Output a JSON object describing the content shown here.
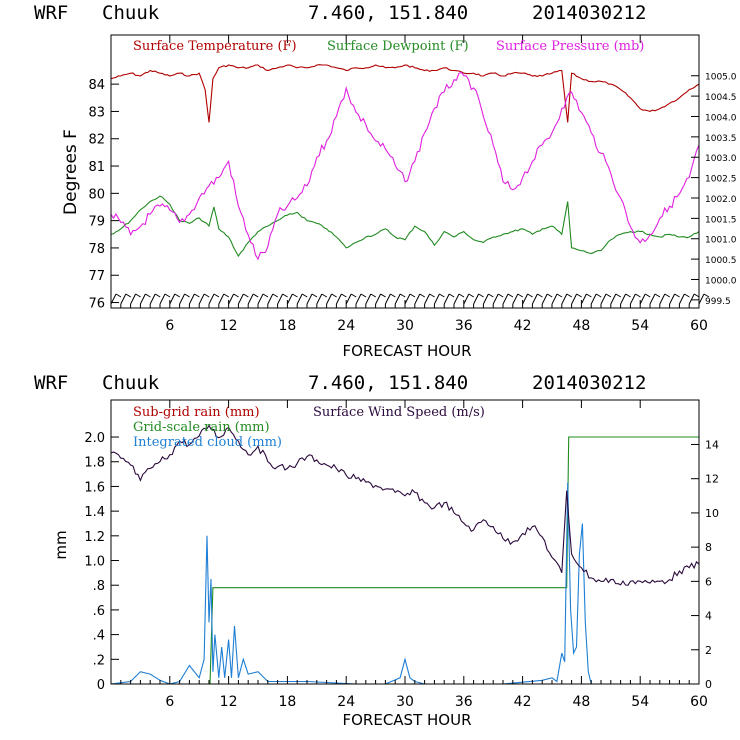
{
  "header": {
    "model": "WRF",
    "station": "Chuuk",
    "coords": "7.460, 151.840",
    "run": "2014030212"
  },
  "colors": {
    "temperature": "#b00000",
    "dewpoint": "#228b22",
    "pressure": "#e020e0",
    "subgrid_rain": "#b00000",
    "gridscale_rain": "#228b22",
    "cloud": "#1e7fd4",
    "wind": "#2b0a3d",
    "axis": "#000000",
    "barb": "#000000"
  },
  "chart_data": [
    {
      "type": "line",
      "xlabel": "FORECAST HOUR",
      "ylabel": "Degrees F",
      "xlim": [
        0,
        60
      ],
      "ylim": [
        75.8,
        85.8
      ],
      "y2lim": [
        999.3,
        1006.0
      ],
      "xticks": [
        6,
        12,
        18,
        24,
        30,
        36,
        42,
        48,
        54,
        60
      ],
      "yticks": [
        76,
        77,
        78,
        79,
        80,
        81,
        82,
        83,
        84
      ],
      "y2ticks": [
        "999.5",
        "1000.0",
        "1000.5",
        "1001.0",
        "1001.5",
        "1002.0",
        "1002.5",
        "1003.0",
        "1003.5",
        "1004.0",
        "1004.5",
        "1005.0"
      ],
      "legend": [
        "Surface Temperature (F)",
        "Surface Dewpoint (F)",
        "Surface Pressure (mb)"
      ],
      "legend_placement": "top",
      "wind_barbs": "bottom strip, one barb per hour",
      "series": [
        {
          "name": "Surface Temperature (F)",
          "axis": "left",
          "x": [
            0,
            1,
            2,
            3,
            4,
            5,
            6,
            7,
            8,
            9,
            9.6,
            10,
            10.4,
            11,
            12,
            13,
            14,
            15,
            16,
            17,
            18,
            19,
            20,
            21,
            22,
            23,
            24,
            25,
            26,
            27,
            28,
            29,
            30,
            31,
            32,
            33,
            34,
            35,
            36,
            37,
            38,
            39,
            40,
            41,
            42,
            43,
            44,
            45,
            46,
            46.6,
            47,
            48,
            49,
            50,
            51,
            52,
            53,
            54,
            55,
            56,
            57,
            58,
            59,
            60
          ],
          "values": [
            84.2,
            84.3,
            84.4,
            84.3,
            84.5,
            84.4,
            84.3,
            84.4,
            84.3,
            84.4,
            83.8,
            82.6,
            84.2,
            84.6,
            84.7,
            84.6,
            84.6,
            84.7,
            84.5,
            84.6,
            84.7,
            84.6,
            84.6,
            84.7,
            84.7,
            84.6,
            84.5,
            84.6,
            84.6,
            84.7,
            84.6,
            84.6,
            84.7,
            84.6,
            84.5,
            84.5,
            84.6,
            84.5,
            84.4,
            84.4,
            84.3,
            84.4,
            84.3,
            84.4,
            84.4,
            84.3,
            84.3,
            84.4,
            84.5,
            82.6,
            84.4,
            84.2,
            84.1,
            84.1,
            84.0,
            83.8,
            83.5,
            83.1,
            83.0,
            83.1,
            83.3,
            83.5,
            83.8,
            84.0
          ]
        },
        {
          "name": "Surface Dewpoint (F)",
          "axis": "left",
          "x": [
            0,
            1,
            2,
            3,
            4,
            5,
            6,
            7,
            8,
            9,
            10,
            10.5,
            11,
            12,
            13,
            14,
            15,
            16,
            17,
            18,
            19,
            20,
            21,
            22,
            23,
            24,
            25,
            26,
            27,
            28,
            29,
            30,
            31,
            32,
            33,
            34,
            35,
            36,
            37,
            38,
            39,
            40,
            41,
            42,
            43,
            44,
            45,
            46,
            46.6,
            47,
            48,
            49,
            50,
            51,
            52,
            53,
            54,
            55,
            56,
            57,
            58,
            59,
            60
          ],
          "values": [
            78.5,
            78.7,
            79.0,
            79.4,
            79.7,
            79.9,
            79.6,
            79.0,
            78.9,
            79.1,
            78.8,
            79.5,
            78.7,
            78.4,
            77.7,
            78.2,
            78.6,
            78.8,
            79.0,
            79.2,
            79.3,
            79.0,
            78.9,
            78.7,
            78.4,
            78.0,
            78.2,
            78.4,
            78.5,
            78.7,
            78.4,
            78.3,
            78.8,
            78.6,
            78.1,
            78.6,
            78.4,
            78.6,
            78.3,
            78.2,
            78.4,
            78.5,
            78.6,
            78.7,
            78.5,
            78.7,
            78.8,
            78.5,
            79.7,
            78.0,
            77.9,
            77.8,
            77.9,
            78.3,
            78.5,
            78.6,
            78.6,
            78.5,
            78.4,
            78.5,
            78.4,
            78.4,
            78.6
          ]
        },
        {
          "name": "Surface Pressure (mb)",
          "axis": "right",
          "x": [
            0,
            1,
            2,
            3,
            4,
            5,
            6,
            7,
            8,
            9,
            10,
            11,
            12,
            13,
            14,
            15,
            16,
            17,
            18,
            19,
            20,
            21,
            22,
            23,
            24,
            25,
            26,
            27,
            28,
            29,
            30,
            31,
            32,
            33,
            34,
            35,
            36,
            37,
            38,
            39,
            40,
            41,
            42,
            43,
            44,
            45,
            46,
            47,
            48,
            49,
            50,
            51,
            52,
            53,
            54,
            55,
            56,
            57,
            58,
            59,
            60
          ],
          "values": [
            1001.6,
            1001.4,
            1001.1,
            1001.3,
            1001.6,
            1001.8,
            1001.7,
            1001.4,
            1001.6,
            1002.0,
            1002.3,
            1002.5,
            1002.9,
            1001.8,
            1001.1,
            1000.5,
            1000.8,
            1001.6,
            1001.8,
            1002.0,
            1002.3,
            1003.0,
            1003.4,
            1004.0,
            1004.7,
            1004.1,
            1003.8,
            1003.4,
            1003.2,
            1002.8,
            1002.4,
            1002.9,
            1003.6,
            1004.2,
            1004.6,
            1004.9,
            1005.0,
            1004.7,
            1004.0,
            1003.3,
            1002.4,
            1002.2,
            1002.5,
            1002.9,
            1003.3,
            1003.6,
            1004.2,
            1004.6,
            1004.1,
            1003.6,
            1003.1,
            1002.6,
            1002.0,
            1001.3,
            1000.9,
            1001.1,
            1001.5,
            1001.8,
            1002.1,
            1002.5,
            1003.3
          ]
        }
      ]
    },
    {
      "type": "line",
      "xlabel": "FORECAST HOUR",
      "ylabel": "mm",
      "xlim": [
        0,
        60
      ],
      "ylim": [
        0,
        2.3
      ],
      "y2lim": [
        0,
        16.6
      ],
      "xticks": [
        6,
        12,
        18,
        24,
        30,
        36,
        42,
        48,
        54,
        60
      ],
      "yticks": [
        "0",
        ".2",
        ".4",
        ".6",
        ".8",
        "1.0",
        "1.2",
        "1.4",
        "1.6",
        "1.8",
        "2.0"
      ],
      "y2ticks": [
        "0",
        "2",
        "4",
        "6",
        "8",
        "10",
        "12",
        "14"
      ],
      "legend": [
        "Sub-grid rain (mm)",
        "Surface Wind Speed (m/s)",
        "Grid-scale rain (mm)",
        "Integrated cloud (mm)"
      ],
      "legend_placement": "top-left",
      "series": [
        {
          "name": "Sub-grid rain (mm)",
          "axis": "left",
          "x": [
            0,
            60
          ],
          "values": [
            0,
            0
          ]
        },
        {
          "name": "Grid-scale rain (mm)",
          "axis": "left",
          "x": [
            0,
            10.1,
            10.4,
            46.2,
            46.5,
            46.7,
            60
          ],
          "values": [
            0,
            0,
            0.78,
            0.78,
            0.78,
            2.0,
            2.0
          ]
        },
        {
          "name": "Integrated cloud (mm)",
          "axis": "left",
          "x": [
            0,
            2,
            3,
            4,
            5,
            6,
            7,
            8,
            9,
            9.5,
            9.8,
            10.0,
            10.2,
            10.4,
            10.6,
            11.0,
            11.3,
            11.6,
            12.0,
            12.3,
            12.6,
            13.0,
            13.5,
            14,
            15,
            16,
            20,
            25,
            28,
            29.5,
            30,
            30.5,
            31,
            32,
            40,
            44,
            45,
            45.5,
            46,
            46.3,
            46.6,
            46.9,
            47.2,
            47.5,
            47.8,
            48.1,
            48.4,
            48.7,
            49,
            52,
            60
          ],
          "values": [
            0,
            0.02,
            0.1,
            0.08,
            0.03,
            0,
            0.02,
            0.15,
            0.05,
            0.2,
            1.2,
            0.5,
            0.85,
            0.1,
            0.4,
            0.05,
            0.3,
            0.05,
            0.36,
            0.05,
            0.47,
            0.05,
            0.2,
            0.08,
            0.1,
            0.02,
            0.02,
            0.0,
            0.0,
            0.05,
            0.2,
            0.05,
            0.02,
            0.0,
            0.0,
            0.03,
            0.05,
            0.02,
            0.25,
            0.18,
            1.63,
            0.6,
            0.25,
            0.3,
            1.05,
            1.3,
            0.5,
            0.1,
            0.0,
            0.0,
            0.0
          ]
        },
        {
          "name": "Surface Wind Speed (m/s)",
          "axis": "right",
          "x": [
            0,
            1,
            2,
            3,
            4,
            5,
            6,
            7,
            8,
            9,
            10,
            11,
            12,
            13,
            14,
            15,
            16,
            17,
            18,
            19,
            20,
            21,
            22,
            23,
            24,
            25,
            26,
            27,
            28,
            29,
            30,
            31,
            32,
            33,
            34,
            35,
            36,
            37,
            38,
            39,
            40,
            41,
            42,
            43,
            44,
            45,
            46,
            46.5,
            47,
            48,
            49,
            50,
            51,
            52,
            53,
            54,
            55,
            56,
            57,
            58,
            59,
            60
          ],
          "values": [
            13.5,
            13.2,
            12.8,
            11.9,
            12.6,
            13.0,
            13.4,
            14.2,
            14.0,
            14.5,
            15.1,
            14.4,
            15.0,
            14.2,
            13.4,
            13.9,
            13.0,
            12.7,
            12.6,
            12.9,
            13.3,
            13.1,
            12.8,
            12.6,
            12.2,
            12.0,
            11.8,
            11.6,
            11.4,
            11.2,
            11.0,
            11.2,
            10.6,
            10.3,
            10.6,
            10.0,
            9.4,
            9.0,
            9.6,
            9.2,
            8.5,
            8.3,
            8.8,
            9.2,
            8.6,
            7.4,
            6.5,
            11.3,
            7.6,
            6.8,
            6.2,
            6.0,
            6.1,
            5.8,
            6.0,
            6.0,
            5.9,
            6.0,
            6.1,
            6.6,
            6.8,
            7.0
          ]
        }
      ]
    }
  ]
}
